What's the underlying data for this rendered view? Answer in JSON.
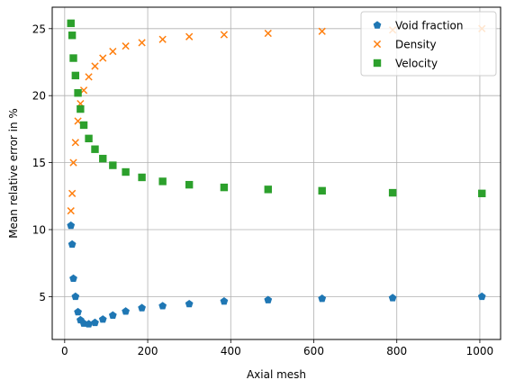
{
  "chart_data": {
    "type": "scatter",
    "xlabel": "Axial mesh",
    "ylabel": "Mean relative error in %",
    "xlim": [
      -30,
      1050
    ],
    "ylim": [
      1.8,
      26.6
    ],
    "xticks": [
      0,
      200,
      400,
      600,
      800,
      1000
    ],
    "yticks": [
      5,
      10,
      15,
      20,
      25
    ],
    "grid": true,
    "legend_position": "top-right",
    "series": [
      {
        "name": "Void fraction",
        "marker": "pentagon",
        "color": "#1f77b4",
        "x": [
          15,
          18,
          21,
          26,
          32,
          38,
          46,
          58,
          73,
          92,
          116,
          147,
          186,
          236,
          300,
          384,
          490,
          620,
          790,
          1005
        ],
        "y": [
          10.3,
          8.9,
          6.35,
          5.0,
          3.85,
          3.25,
          3.0,
          2.95,
          3.05,
          3.3,
          3.6,
          3.9,
          4.15,
          4.3,
          4.45,
          4.65,
          4.75,
          4.85,
          4.9,
          5.0
        ]
      },
      {
        "name": "Density",
        "marker": "x",
        "color": "#ff7f0e",
        "x": [
          15,
          18,
          21,
          26,
          32,
          38,
          46,
          58,
          73,
          92,
          116,
          147,
          186,
          236,
          300,
          384,
          490,
          620,
          790,
          1005
        ],
        "y": [
          11.4,
          12.7,
          15.0,
          16.5,
          18.1,
          19.4,
          20.4,
          21.4,
          22.2,
          22.8,
          23.3,
          23.7,
          23.95,
          24.2,
          24.4,
          24.55,
          24.65,
          24.8,
          24.9,
          25.0
        ]
      },
      {
        "name": "Velocity",
        "marker": "square",
        "color": "#2ca02c",
        "x": [
          15,
          18,
          21,
          26,
          32,
          38,
          46,
          58,
          73,
          92,
          116,
          147,
          186,
          236,
          300,
          384,
          490,
          620,
          790,
          1005
        ],
        "y": [
          25.4,
          24.5,
          22.8,
          21.5,
          20.2,
          19.0,
          17.8,
          16.8,
          16.0,
          15.3,
          14.8,
          14.3,
          13.9,
          13.6,
          13.35,
          13.15,
          13.0,
          12.9,
          12.75,
          12.7
        ]
      }
    ]
  }
}
